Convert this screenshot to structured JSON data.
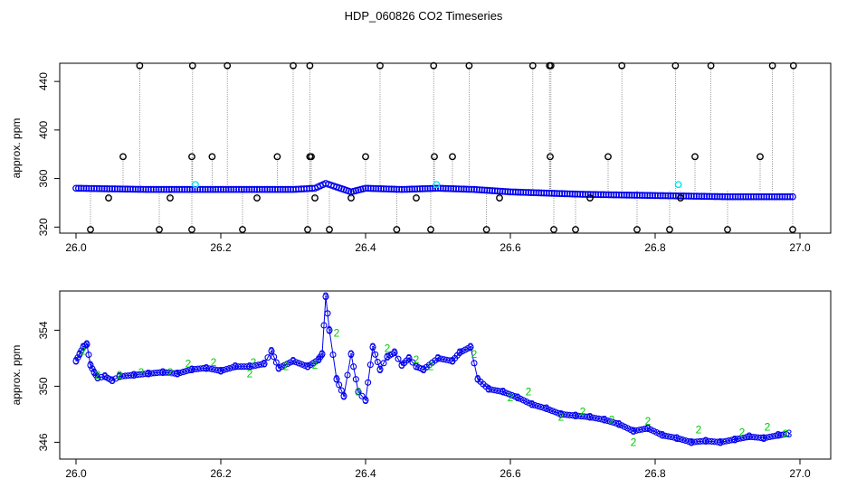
{
  "figure": {
    "title": "HDP_060826  CO2 Timeseries"
  },
  "colors": {
    "primary": "#0000ee",
    "secondary": "#00cc00",
    "outlier": "#000000",
    "highlight": "#00e5ee",
    "gray": "#888888"
  },
  "chart_data": [
    {
      "type": "scatter",
      "title": "",
      "xlabel": "",
      "ylabel": "approx. ppm",
      "xlim": [
        26.0,
        27.0
      ],
      "ylim": [
        315,
        455
      ],
      "xticks": [
        "26.0",
        "26.2",
        "26.4",
        "26.6",
        "26.8",
        "27.0"
      ],
      "yticks": [
        "320",
        "360",
        "400",
        "440"
      ],
      "grid": false,
      "baseline": {
        "x": [
          26.0,
          26.1,
          26.2,
          26.3,
          26.33,
          26.345,
          26.36,
          26.38,
          26.4,
          26.45,
          26.5,
          26.55,
          26.6,
          26.65,
          26.7,
          26.8,
          26.9,
          26.99
        ],
        "y": [
          352,
          351,
          351,
          351,
          352,
          356,
          353,
          349,
          352,
          351,
          352,
          351,
          349,
          348,
          347,
          346,
          345,
          345
        ]
      },
      "outliers_high": {
        "x": [
          26.088,
          26.161,
          26.209,
          26.3,
          26.323,
          26.42,
          26.494,
          26.543,
          26.631,
          26.654,
          26.656,
          26.754,
          26.828,
          26.877,
          26.962,
          26.991
        ],
        "y": [
          453,
          453,
          453,
          453,
          453,
          453,
          453,
          453,
          453,
          453,
          453,
          453,
          453,
          453,
          453,
          453
        ]
      },
      "outliers_mid": {
        "x": [
          26.065,
          26.16,
          26.188,
          26.278,
          26.323,
          26.325,
          26.4,
          26.495,
          26.52,
          26.655,
          26.735,
          26.855,
          26.945
        ],
        "y": [
          378,
          378,
          378,
          378,
          378,
          378,
          378,
          378,
          378,
          378,
          378,
          378,
          378
        ]
      },
      "outliers_low": {
        "x": [
          26.02,
          26.045,
          26.115,
          26.13,
          26.16,
          26.23,
          26.25,
          26.32,
          26.33,
          26.35,
          26.38,
          26.443,
          26.47,
          26.49,
          26.567,
          26.585,
          26.66,
          26.69,
          26.71,
          26.775,
          26.82,
          26.835,
          26.9,
          26.99
        ],
        "y": [
          318,
          344,
          318,
          344,
          318,
          318,
          344,
          318,
          344,
          318,
          344,
          318,
          344,
          318,
          318,
          344,
          318,
          318,
          344,
          318,
          318,
          344,
          318,
          318
        ]
      },
      "highlight_points": {
        "x": [
          26.165,
          26.498,
          26.832
        ],
        "y": [
          355,
          355,
          355
        ]
      }
    },
    {
      "type": "scatter",
      "title": "",
      "xlabel": "",
      "ylabel": "approx. ppm",
      "xlim": [
        26.0,
        27.0
      ],
      "ylim": [
        344.8,
        356.8
      ],
      "xticks": [
        "26.0",
        "26.2",
        "26.4",
        "26.6",
        "26.8",
        "27.0"
      ],
      "yticks": [
        "346",
        "350",
        "354"
      ],
      "grid": false,
      "series": [
        {
          "marker": "3",
          "color": "#0000ee",
          "x": [
            26.0,
            26.005,
            26.01,
            26.015,
            26.02,
            26.025,
            26.03,
            26.04,
            26.05,
            26.06,
            26.08,
            26.1,
            26.12,
            26.14,
            26.16,
            26.18,
            26.2,
            26.22,
            26.24,
            26.26,
            26.27,
            26.28,
            26.3,
            26.32,
            26.335,
            26.34,
            26.345,
            26.35,
            26.36,
            26.37,
            26.38,
            26.39,
            26.4,
            26.41,
            26.42,
            26.43,
            26.44,
            26.45,
            26.46,
            26.47,
            26.48,
            26.5,
            26.52,
            26.53,
            26.545,
            26.555,
            26.57,
            26.59,
            26.61,
            26.63,
            26.65,
            26.67,
            26.69,
            26.71,
            26.73,
            26.75,
            26.77,
            26.79,
            26.81,
            26.83,
            26.85,
            26.87,
            26.89,
            26.91,
            26.93,
            26.95,
            26.97,
            26.985
          ],
          "y": [
            351.8,
            352.3,
            352.8,
            353.0,
            351.5,
            351.0,
            350.6,
            350.7,
            350.4,
            350.7,
            350.8,
            350.9,
            351.0,
            350.9,
            351.2,
            351.3,
            351.1,
            351.4,
            351.4,
            351.6,
            352.5,
            351.3,
            351.8,
            351.4,
            351.9,
            352.3,
            356.4,
            354.0,
            350.5,
            349.3,
            352.3,
            349.6,
            349.0,
            352.8,
            351.2,
            352.1,
            352.4,
            351.5,
            352.0,
            351.4,
            351.2,
            352.0,
            351.8,
            352.4,
            352.8,
            350.5,
            349.8,
            349.6,
            349.2,
            348.7,
            348.4,
            348.0,
            347.9,
            347.8,
            347.6,
            347.3,
            346.8,
            347.0,
            346.5,
            346.3,
            346.0,
            346.1,
            346.0,
            346.2,
            346.4,
            346.3,
            346.5,
            346.6
          ]
        },
        {
          "marker": "2",
          "color": "#00cc00",
          "x": [
            26.01,
            26.03,
            26.06,
            26.09,
            26.13,
            26.155,
            26.19,
            26.24,
            26.245,
            26.29,
            26.33,
            26.36,
            26.39,
            26.43,
            26.47,
            26.49,
            26.55,
            26.6,
            26.625,
            26.67,
            26.7,
            26.74,
            26.77,
            26.79,
            26.86,
            26.92,
            26.955,
            26.98
          ],
          "y": [
            352.5,
            350.8,
            350.8,
            351.0,
            351.0,
            351.6,
            351.7,
            350.9,
            351.7,
            351.4,
            351.5,
            353.8,
            349.6,
            352.7,
            351.9,
            351.4,
            352.3,
            349.2,
            349.6,
            347.8,
            348.2,
            347.6,
            346.0,
            347.5,
            346.9,
            346.7,
            347.1,
            346.6
          ]
        }
      ]
    }
  ]
}
